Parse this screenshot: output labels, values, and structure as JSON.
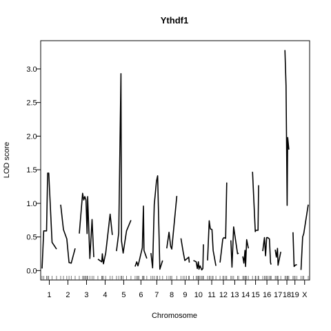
{
  "chart_data": {
    "type": "line",
    "title": "Ythdf1",
    "xlabel": "Chromosome",
    "ylabel": "LOD score",
    "ylim": [
      -0.14,
      3.42
    ],
    "y_ticks": [
      0.0,
      0.5,
      1.0,
      1.5,
      2.0,
      2.5,
      3.0
    ],
    "y_tick_labels": [
      "0.0",
      "0.5",
      "1.0",
      "1.5",
      "2.0",
      "2.5",
      "3.0"
    ],
    "x_ticks": [
      "1",
      "2",
      "3",
      "4",
      "5",
      "6",
      "7",
      "8",
      "9",
      "10",
      "11",
      "12",
      "13",
      "14",
      "15",
      "16",
      "17",
      "18",
      "19",
      "X"
    ],
    "grid": false,
    "legend": "none",
    "line_color": "#000000",
    "chromosomes": [
      {
        "name": "1",
        "x": [
          0,
          3,
          8,
          10,
          12,
          18,
          26
        ],
        "y": [
          0.03,
          0.59,
          0.59,
          1.45,
          1.45,
          0.42,
          0.32
        ]
      },
      {
        "name": "2",
        "x": [
          0,
          5,
          11,
          15,
          19,
          26
        ],
        "y": [
          0.98,
          0.61,
          0.47,
          0.12,
          0.11,
          0.33
        ]
      },
      {
        "name": "3",
        "x": [
          0,
          6,
          8,
          10,
          12,
          14,
          15,
          19,
          23,
          26
        ],
        "y": [
          0.55,
          1.15,
          1.05,
          1.1,
          1.05,
          0.55,
          1.1,
          0.18,
          0.76,
          0.2
        ]
      },
      {
        "name": "4",
        "x": [
          0,
          7,
          8,
          10,
          14,
          22,
          26
        ],
        "y": [
          0.17,
          0.13,
          0.25,
          0.1,
          0.26,
          0.84,
          0.53
        ]
      },
      {
        "name": "5",
        "x": [
          0,
          4,
          8,
          9,
          12,
          18,
          26
        ],
        "y": [
          0.29,
          0.56,
          2.93,
          0.44,
          0.26,
          0.59,
          0.75
        ]
      },
      {
        "name": "6",
        "x": [
          0,
          3,
          5,
          7,
          13,
          15,
          16,
          21
        ],
        "y": [
          0.06,
          0.13,
          0.07,
          0.13,
          0.34,
          0.96,
          0.3,
          0.18
        ]
      },
      {
        "name": "7",
        "x": [
          0,
          3,
          6,
          10,
          12,
          16,
          21
        ],
        "y": [
          0.26,
          0.04,
          0.98,
          1.33,
          1.41,
          0.02,
          0.15
        ]
      },
      {
        "name": "8",
        "x": [
          0,
          4,
          7,
          9,
          18
        ],
        "y": [
          0.33,
          0.57,
          0.36,
          0.32,
          1.11
        ]
      },
      {
        "name": "9",
        "x": [
          0,
          4,
          7,
          10,
          14,
          15
        ],
        "y": [
          0.48,
          0.28,
          0.15,
          0.17,
          0.2,
          0.12
        ]
      },
      {
        "name": "10",
        "x": [
          0,
          5,
          7,
          9,
          10,
          12,
          15,
          17,
          18
        ],
        "y": [
          0.15,
          0.13,
          0.03,
          0.13,
          0.02,
          0.07,
          0.01,
          0.03,
          0.39
        ]
      },
      {
        "name": "11",
        "x": [
          0,
          3,
          5,
          8,
          10,
          15
        ],
        "y": [
          0.15,
          0.74,
          0.62,
          0.61,
          0.3,
          0.07
        ]
      },
      {
        "name": "12",
        "x": [
          0,
          5,
          7,
          10,
          12
        ],
        "y": [
          0.12,
          0.47,
          0.49,
          0.48,
          1.31
        ]
      },
      {
        "name": "13",
        "x": [
          0,
          2,
          5,
          12,
          14
        ],
        "y": [
          0.45,
          0.05,
          0.65,
          0.25,
          0.26
        ]
      },
      {
        "name": "14",
        "x": [
          0,
          2,
          4,
          5,
          7,
          10
        ],
        "y": [
          0.21,
          0.11,
          0.3,
          0.06,
          0.46,
          0.33
        ]
      },
      {
        "name": "15",
        "x": [
          0,
          5,
          6,
          10,
          11
        ],
        "y": [
          1.47,
          0.58,
          0.6,
          0.6,
          1.27
        ]
      },
      {
        "name": "16",
        "x": [
          0,
          3,
          5,
          7,
          9,
          12,
          14,
          15
        ],
        "y": [
          0.29,
          0.49,
          0.22,
          0.49,
          0.49,
          0.47,
          0.12,
          0.09
        ]
      },
      {
        "name": "17",
        "x": [
          0,
          2,
          4,
          5,
          10
        ],
        "y": [
          0.31,
          0.2,
          0.33,
          0.08,
          0.28
        ]
      },
      {
        "name": "18",
        "x": [
          0,
          2,
          4,
          5,
          7
        ],
        "y": [
          3.28,
          2.75,
          0.97,
          1.98,
          1.8
        ]
      },
      {
        "name": "19",
        "x": [
          0,
          2,
          4,
          7
        ],
        "y": [
          0.57,
          0.06,
          0.08,
          0.09
        ]
      },
      {
        "name": "X",
        "x": [
          0,
          3,
          5,
          13
        ],
        "y": [
          0.01,
          0.5,
          0.55,
          0.98
        ]
      }
    ]
  }
}
